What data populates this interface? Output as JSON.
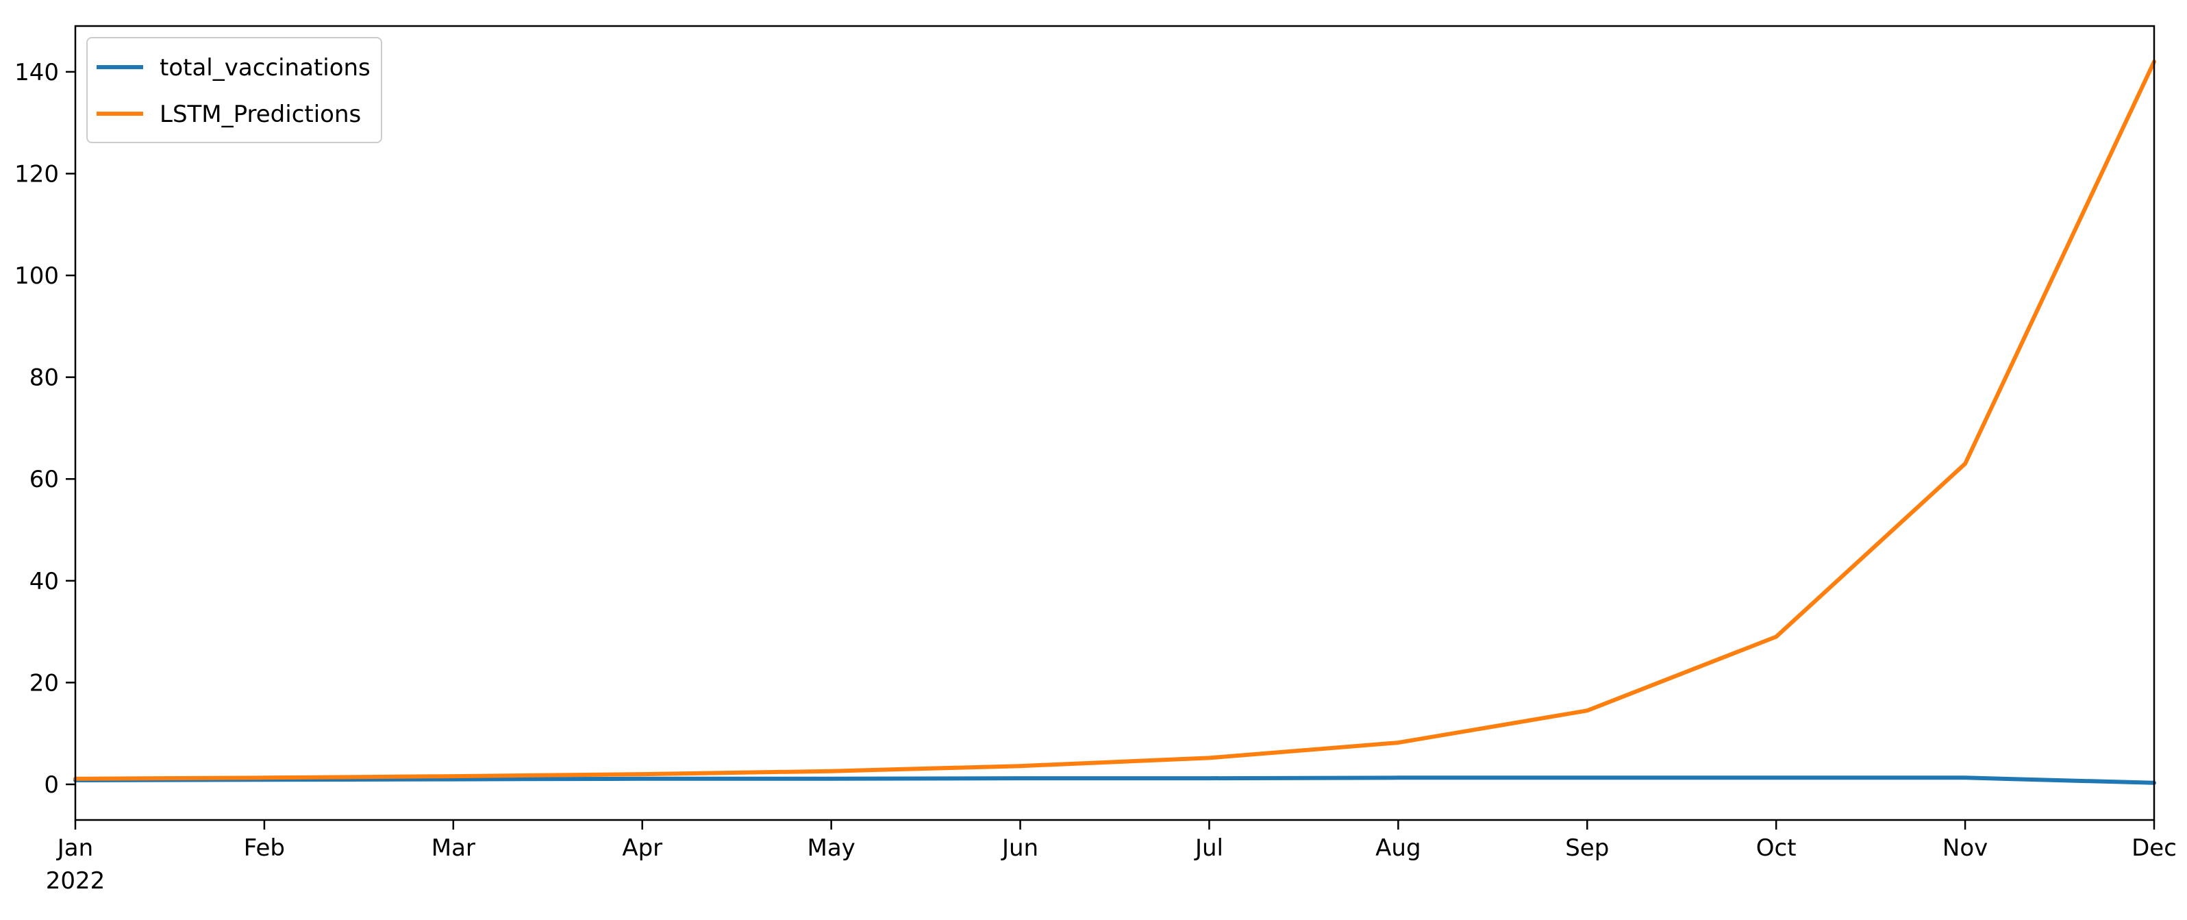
{
  "chart_data": {
    "type": "line",
    "title": "",
    "xlabel": "",
    "ylabel": "",
    "x": [
      "2022-01",
      "2022-02",
      "2022-03",
      "2022-04",
      "2022-05",
      "2022-06",
      "2022-07",
      "2022-08",
      "2022-09",
      "2022-10",
      "2022-11",
      "2022-12"
    ],
    "x_tick_labels": [
      "Jan",
      "Feb",
      "Mar",
      "Apr",
      "May",
      "Jun",
      "Jul",
      "Aug",
      "Sep",
      "Oct",
      "Nov",
      "Dec"
    ],
    "x_year_label": "2022",
    "yticks": [
      0,
      20,
      40,
      60,
      80,
      100,
      120,
      140
    ],
    "ylim": [
      -7,
      149
    ],
    "grid": false,
    "legend_position": "upper-left",
    "series": [
      {
        "name": "total_vaccinations",
        "color": "#1f77b4",
        "values": [
          0.8,
          0.9,
          1.0,
          1.1,
          1.1,
          1.2,
          1.2,
          1.3,
          1.3,
          1.3,
          1.3,
          0.3
        ]
      },
      {
        "name": "LSTM_Predictions",
        "color": "#ff7f0e",
        "values": [
          1.1,
          1.3,
          1.6,
          2.0,
          2.6,
          3.6,
          5.2,
          8.2,
          14.5,
          29.0,
          63.0,
          142.0
        ]
      }
    ]
  }
}
